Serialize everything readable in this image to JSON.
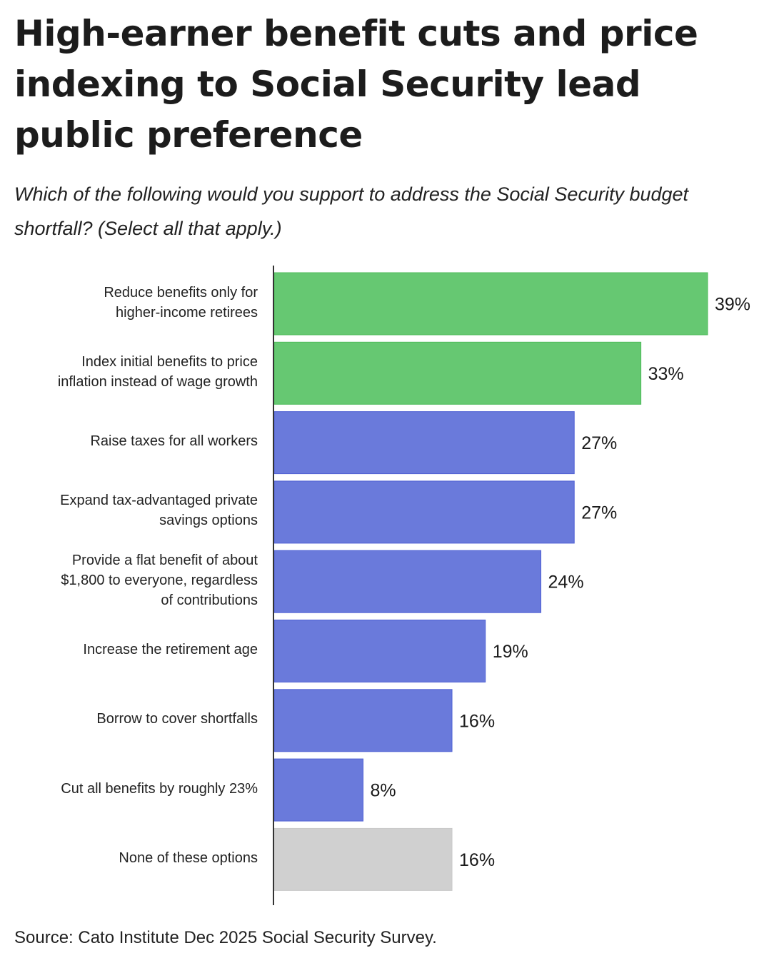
{
  "chart_data": {
    "type": "bar",
    "orientation": "horizontal",
    "title": "High-earner benefit cuts and price indexing to Social Security lead public preference",
    "subtitle": "Which of the following would you support to address the Social Security budget shortfall? (Select all that apply.)",
    "categories": [
      [
        "Reduce benefits only for",
        "higher-income retirees"
      ],
      [
        "Index initial benefits to price",
        "inflation instead of wage growth"
      ],
      [
        "Raise taxes for all workers"
      ],
      [
        "Expand tax-advantaged private",
        "savings options"
      ],
      [
        "Provide a flat benefit of about",
        "$1,800 to everyone, regardless",
        "of contributions"
      ],
      [
        "Increase the retirement age"
      ],
      [
        "Borrow to cover shortfalls"
      ],
      [
        "Cut all benefits by roughly 23%"
      ],
      [
        "None of these options"
      ]
    ],
    "values": [
      39,
      33,
      27,
      27,
      24,
      19,
      16,
      8,
      16
    ],
    "value_labels": [
      "39%",
      "33%",
      "27%",
      "27%",
      "24%",
      "19%",
      "16%",
      "8%",
      "16%"
    ],
    "colors": [
      "#66c872",
      "#66c872",
      "#6a7adb",
      "#6a7adb",
      "#6a7adb",
      "#6a7adb",
      "#6a7adb",
      "#6a7adb",
      "#d0d0d0"
    ],
    "xlim": [
      0,
      39
    ],
    "grid": false,
    "legend": "none",
    "source": "Source: Cato Institute Dec 2025 Social Security Survey."
  }
}
